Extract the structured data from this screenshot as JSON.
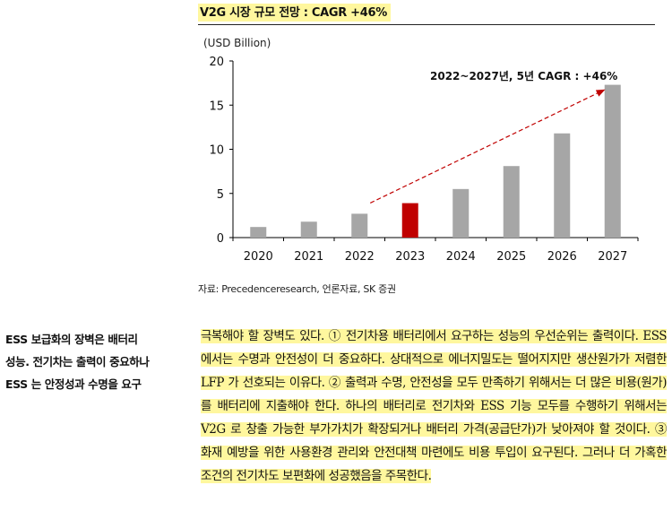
{
  "chart_title": "V2G 시장 규모 전망 : CAGR +46%",
  "source": "자료: Precedenceresearch, 언론자료, SK 증권",
  "chart_data": {
    "type": "bar",
    "unit_label": "(USD Billion)",
    "categories": [
      "2020",
      "2021",
      "2022",
      "2023",
      "2024",
      "2025",
      "2026",
      "2027"
    ],
    "values": [
      1.2,
      1.8,
      2.7,
      3.9,
      5.5,
      8.1,
      11.8,
      17.3
    ],
    "highlight_index": 3,
    "ylim": [
      0,
      20
    ],
    "yticks": [
      0,
      5,
      10,
      15,
      20
    ],
    "annotation": "2022~2027년, 5년 CAGR : +46%",
    "colors": {
      "bar": "#a6a6a6",
      "highlight": "#c00000",
      "arrow": "#c00000"
    },
    "grid": false
  },
  "side_note": [
    "ESS 보급화의 장벽은 배터리",
    "성능. 전기차는 출력이 중요하나",
    "ESS 는 안정성과 수명을 요구"
  ],
  "body_text": "극복해야 할 장벽도 있다. ① 전기차용 배터리에서 요구하는 성능의 우선순위는 출력이다. ESS 에서는 수명과 안전성이 더 중요하다. 상대적으로 에너지밀도는 떨어지지만 생산원가가 저렴한 LFP 가 선호되는 이유다. ② 출력과 수명, 안전성을 모두 만족하기 위해서는 더 많은 비용(원가)를 배터리에 지출해야 한다. 하나의 배터리로 전기차와 ESS 기능 모두를 수행하기 위해서는 V2G 로 창출 가능한 부가가치가 확장되거나 배터리 가격(공급단가)가 낮아져야 할 것이다. ③ 화재 예방을 위한 사용환경 관리와 안전대책 마련에도 비용 투입이 요구된다. 그러나 더 가혹한 조건의 전기차도 보편화에 성공했음을 주목한다."
}
